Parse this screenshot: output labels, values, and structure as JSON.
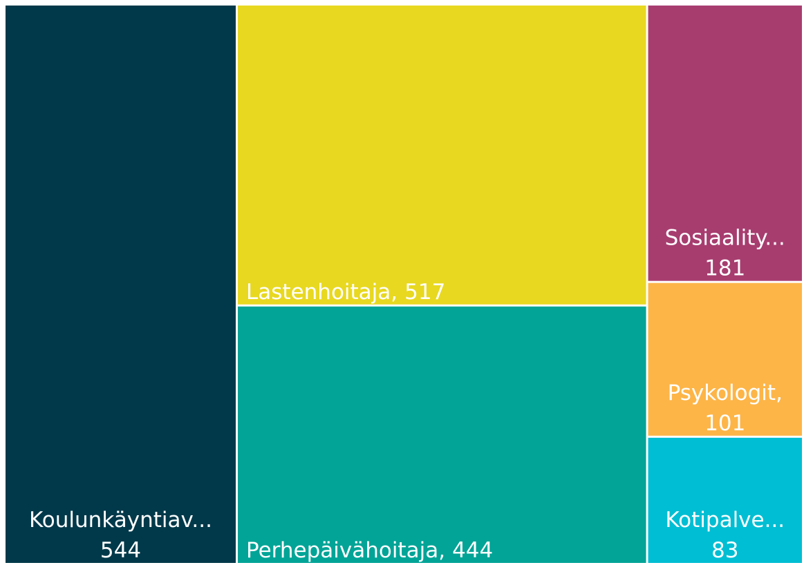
{
  "chart_data": {
    "type": "treemap",
    "categories": [
      "Koulunkäyntiav...",
      "Lastenhoitaja,",
      "Perhepäivähoitaja,",
      "Sosiaality...",
      "Psykologit,",
      "Kotipalve..."
    ],
    "values": [
      544,
      517,
      444,
      181,
      101,
      83
    ],
    "colors": [
      "#01394a",
      "#e8d820",
      "#01a497",
      "#a73d6f",
      "#fdb548",
      "#00bed3"
    ]
  }
}
